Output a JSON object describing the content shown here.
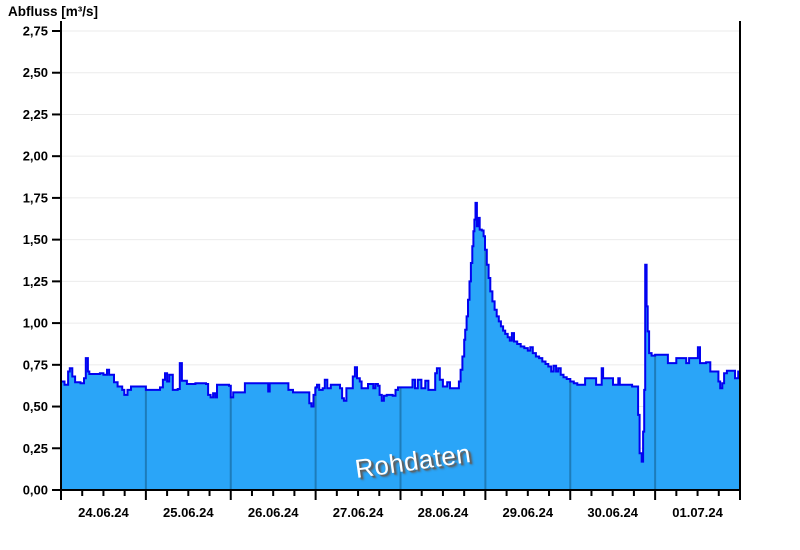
{
  "chart_data": {
    "type": "area",
    "title": "Abfluss [m³/s]",
    "watermark": "Rohdaten",
    "ylabel": "Abfluss",
    "unit": "m³/s",
    "ylim": [
      0,
      2.75
    ],
    "y_tick_step": 0.25,
    "y_tick_labels": [
      "0,00",
      "0,25",
      "0,50",
      "0,75",
      "1,00",
      "1,25",
      "1,50",
      "1,75",
      "2,00",
      "2,25",
      "2,50",
      "2,75"
    ],
    "x_tick_labels": [
      "24.06.24",
      "25.06.24",
      "26.06.24",
      "27.06.24",
      "28.06.24",
      "29.06.24",
      "30.06.24",
      "01.07.24"
    ],
    "x_hours_total": 192,
    "x_minor_tick_hours": 6,
    "grid": true,
    "legend": "none",
    "colors": {
      "fill": "#2aa5f8",
      "line": "#0202f0",
      "day_divider": "#1d7cba",
      "grid": "#ebebeb",
      "axis": "#000000",
      "watermark_text": "#ffffff",
      "watermark_shadow": "#5f5f5f"
    },
    "series": [
      {
        "name": "Abfluss Rohdaten",
        "x_unit": "hours since 24.06.24 00:00",
        "points": [
          [
            0,
            0.65
          ],
          [
            1,
            0.63
          ],
          [
            2,
            0.71
          ],
          [
            2.5,
            0.73
          ],
          [
            3.2,
            0.68
          ],
          [
            4,
            0.645
          ],
          [
            5.5,
            0.64
          ],
          [
            6.5,
            0.67
          ],
          [
            7,
            0.79
          ],
          [
            7.6,
            0.71
          ],
          [
            8,
            0.695
          ],
          [
            11,
            0.7
          ],
          [
            12,
            0.69
          ],
          [
            13,
            0.72
          ],
          [
            13.6,
            0.69
          ],
          [
            15,
            0.645
          ],
          [
            16,
            0.62
          ],
          [
            17.3,
            0.6
          ],
          [
            17.9,
            0.57
          ],
          [
            18.8,
            0.6
          ],
          [
            19.8,
            0.62
          ],
          [
            23,
            0.62
          ],
          [
            24,
            0.6
          ],
          [
            26,
            0.6
          ],
          [
            28,
            0.615
          ],
          [
            28.8,
            0.66
          ],
          [
            29.4,
            0.7
          ],
          [
            30,
            0.65
          ],
          [
            30.6,
            0.69
          ],
          [
            31.6,
            0.6
          ],
          [
            33,
            0.605
          ],
          [
            33.6,
            0.76
          ],
          [
            34.2,
            0.655
          ],
          [
            35.6,
            0.635
          ],
          [
            38,
            0.64
          ],
          [
            41,
            0.635
          ],
          [
            41.6,
            0.57
          ],
          [
            42.3,
            0.555
          ],
          [
            43,
            0.58
          ],
          [
            43.6,
            0.555
          ],
          [
            44.1,
            0.63
          ],
          [
            46,
            0.63
          ],
          [
            47.5,
            0.625
          ],
          [
            48,
            0.555
          ],
          [
            48.7,
            0.585
          ],
          [
            51.8,
            0.585
          ],
          [
            52,
            0.64
          ],
          [
            58.3,
            0.64
          ],
          [
            58.6,
            0.59
          ],
          [
            59,
            0.64
          ],
          [
            64,
            0.64
          ],
          [
            64.3,
            0.6
          ],
          [
            65.6,
            0.585
          ],
          [
            69.8,
            0.585
          ],
          [
            70.2,
            0.52
          ],
          [
            70.8,
            0.5
          ],
          [
            71.4,
            0.57
          ],
          [
            71.9,
            0.61
          ],
          [
            72,
            0.615
          ],
          [
            72.4,
            0.63
          ],
          [
            73,
            0.6
          ],
          [
            74,
            0.61
          ],
          [
            74.6,
            0.66
          ],
          [
            75.3,
            0.61
          ],
          [
            76.3,
            0.63
          ],
          [
            78,
            0.63
          ],
          [
            78.9,
            0.61
          ],
          [
            79.5,
            0.55
          ],
          [
            80,
            0.535
          ],
          [
            80.7,
            0.61
          ],
          [
            82,
            0.61
          ],
          [
            82.5,
            0.68
          ],
          [
            83.1,
            0.735
          ],
          [
            83.7,
            0.67
          ],
          [
            84.5,
            0.65
          ],
          [
            85,
            0.61
          ],
          [
            86,
            0.61
          ],
          [
            86.8,
            0.635
          ],
          [
            88,
            0.635
          ],
          [
            88.3,
            0.61
          ],
          [
            88.9,
            0.635
          ],
          [
            89.6,
            0.625
          ],
          [
            90.1,
            0.57
          ],
          [
            90.7,
            0.535
          ],
          [
            91.3,
            0.565
          ],
          [
            92.1,
            0.57
          ],
          [
            93.8,
            0.565
          ],
          [
            94.6,
            0.6
          ],
          [
            95.3,
            0.615
          ],
          [
            96,
            0.615
          ],
          [
            99,
            0.615
          ],
          [
            99.4,
            0.66
          ],
          [
            100.1,
            0.61
          ],
          [
            100.9,
            0.66
          ],
          [
            101.9,
            0.61
          ],
          [
            103,
            0.655
          ],
          [
            103.9,
            0.6
          ],
          [
            105.5,
            0.6
          ],
          [
            105.8,
            0.7
          ],
          [
            106.3,
            0.73
          ],
          [
            107.1,
            0.66
          ],
          [
            108,
            0.62
          ],
          [
            109.2,
            0.645
          ],
          [
            110,
            0.61
          ],
          [
            112.2,
            0.61
          ],
          [
            112.5,
            0.65
          ],
          [
            113,
            0.72
          ],
          [
            113.5,
            0.8
          ],
          [
            114,
            0.9
          ],
          [
            114.3,
            0.96
          ],
          [
            114.7,
            1.04
          ],
          [
            115.1,
            1.14
          ],
          [
            115.5,
            1.25
          ],
          [
            115.9,
            1.36
          ],
          [
            116.3,
            1.46
          ],
          [
            116.6,
            1.55
          ],
          [
            116.9,
            1.62
          ],
          [
            117.2,
            1.72
          ],
          [
            117.6,
            1.58
          ],
          [
            118,
            1.63
          ],
          [
            118.4,
            1.56
          ],
          [
            119,
            1.555
          ],
          [
            119.5,
            1.52
          ],
          [
            119.9,
            1.44
          ],
          [
            120.4,
            1.35
          ],
          [
            120.9,
            1.27
          ],
          [
            121.4,
            1.19
          ],
          [
            122,
            1.13
          ],
          [
            122.6,
            1.08
          ],
          [
            123.2,
            1.04
          ],
          [
            123.8,
            1.01
          ],
          [
            124.4,
            0.98
          ],
          [
            125,
            0.955
          ],
          [
            125.6,
            0.935
          ],
          [
            126.3,
            0.915
          ],
          [
            126.9,
            0.895
          ],
          [
            127.5,
            0.94
          ],
          [
            128.1,
            0.89
          ],
          [
            129,
            0.875
          ],
          [
            130,
            0.86
          ],
          [
            131,
            0.85
          ],
          [
            132,
            0.835
          ],
          [
            132.7,
            0.855
          ],
          [
            133.4,
            0.82
          ],
          [
            134.3,
            0.8
          ],
          [
            135.2,
            0.79
          ],
          [
            136.1,
            0.77
          ],
          [
            137,
            0.755
          ],
          [
            137.8,
            0.74
          ],
          [
            138.6,
            0.71
          ],
          [
            139.3,
            0.745
          ],
          [
            140,
            0.71
          ],
          [
            140.6,
            0.73
          ],
          [
            141.3,
            0.69
          ],
          [
            142.1,
            0.675
          ],
          [
            143,
            0.665
          ],
          [
            144,
            0.65
          ],
          [
            145,
            0.64
          ],
          [
            146,
            0.63
          ],
          [
            147.5,
            0.63
          ],
          [
            148.2,
            0.67
          ],
          [
            151,
            0.67
          ],
          [
            151.3,
            0.63
          ],
          [
            152.5,
            0.63
          ],
          [
            152.9,
            0.73
          ],
          [
            153.3,
            0.67
          ],
          [
            155.8,
            0.67
          ],
          [
            156.1,
            0.63
          ],
          [
            157.4,
            0.63
          ],
          [
            157.6,
            0.67
          ],
          [
            158,
            0.63
          ],
          [
            160.9,
            0.63
          ],
          [
            161.5,
            0.62
          ],
          [
            162.8,
            0.62
          ],
          [
            163.2,
            0.45
          ],
          [
            163.6,
            0.22
          ],
          [
            164.2,
            0.17
          ],
          [
            164.6,
            0.35
          ],
          [
            164.9,
            0.6
          ],
          [
            165.2,
            1.35
          ],
          [
            165.6,
            1.1
          ],
          [
            165.9,
            0.95
          ],
          [
            166.3,
            0.82
          ],
          [
            167,
            0.805
          ],
          [
            168,
            0.81
          ],
          [
            169,
            0.81
          ],
          [
            171.3,
            0.81
          ],
          [
            171.6,
            0.76
          ],
          [
            173.6,
            0.76
          ],
          [
            174,
            0.79
          ],
          [
            176.5,
            0.79
          ],
          [
            176.8,
            0.76
          ],
          [
            177.6,
            0.79
          ],
          [
            179.6,
            0.79
          ],
          [
            180.1,
            0.855
          ],
          [
            180.7,
            0.76
          ],
          [
            182.4,
            0.765
          ],
          [
            183.6,
            0.71
          ],
          [
            185.2,
            0.71
          ],
          [
            185.9,
            0.65
          ],
          [
            186.4,
            0.61
          ],
          [
            187,
            0.64
          ],
          [
            187.5,
            0.7
          ],
          [
            188.3,
            0.715
          ],
          [
            190.2,
            0.715
          ],
          [
            190.6,
            0.67
          ],
          [
            191.2,
            0.67
          ],
          [
            191.5,
            0.71
          ],
          [
            192,
            0.71
          ]
        ]
      }
    ]
  }
}
